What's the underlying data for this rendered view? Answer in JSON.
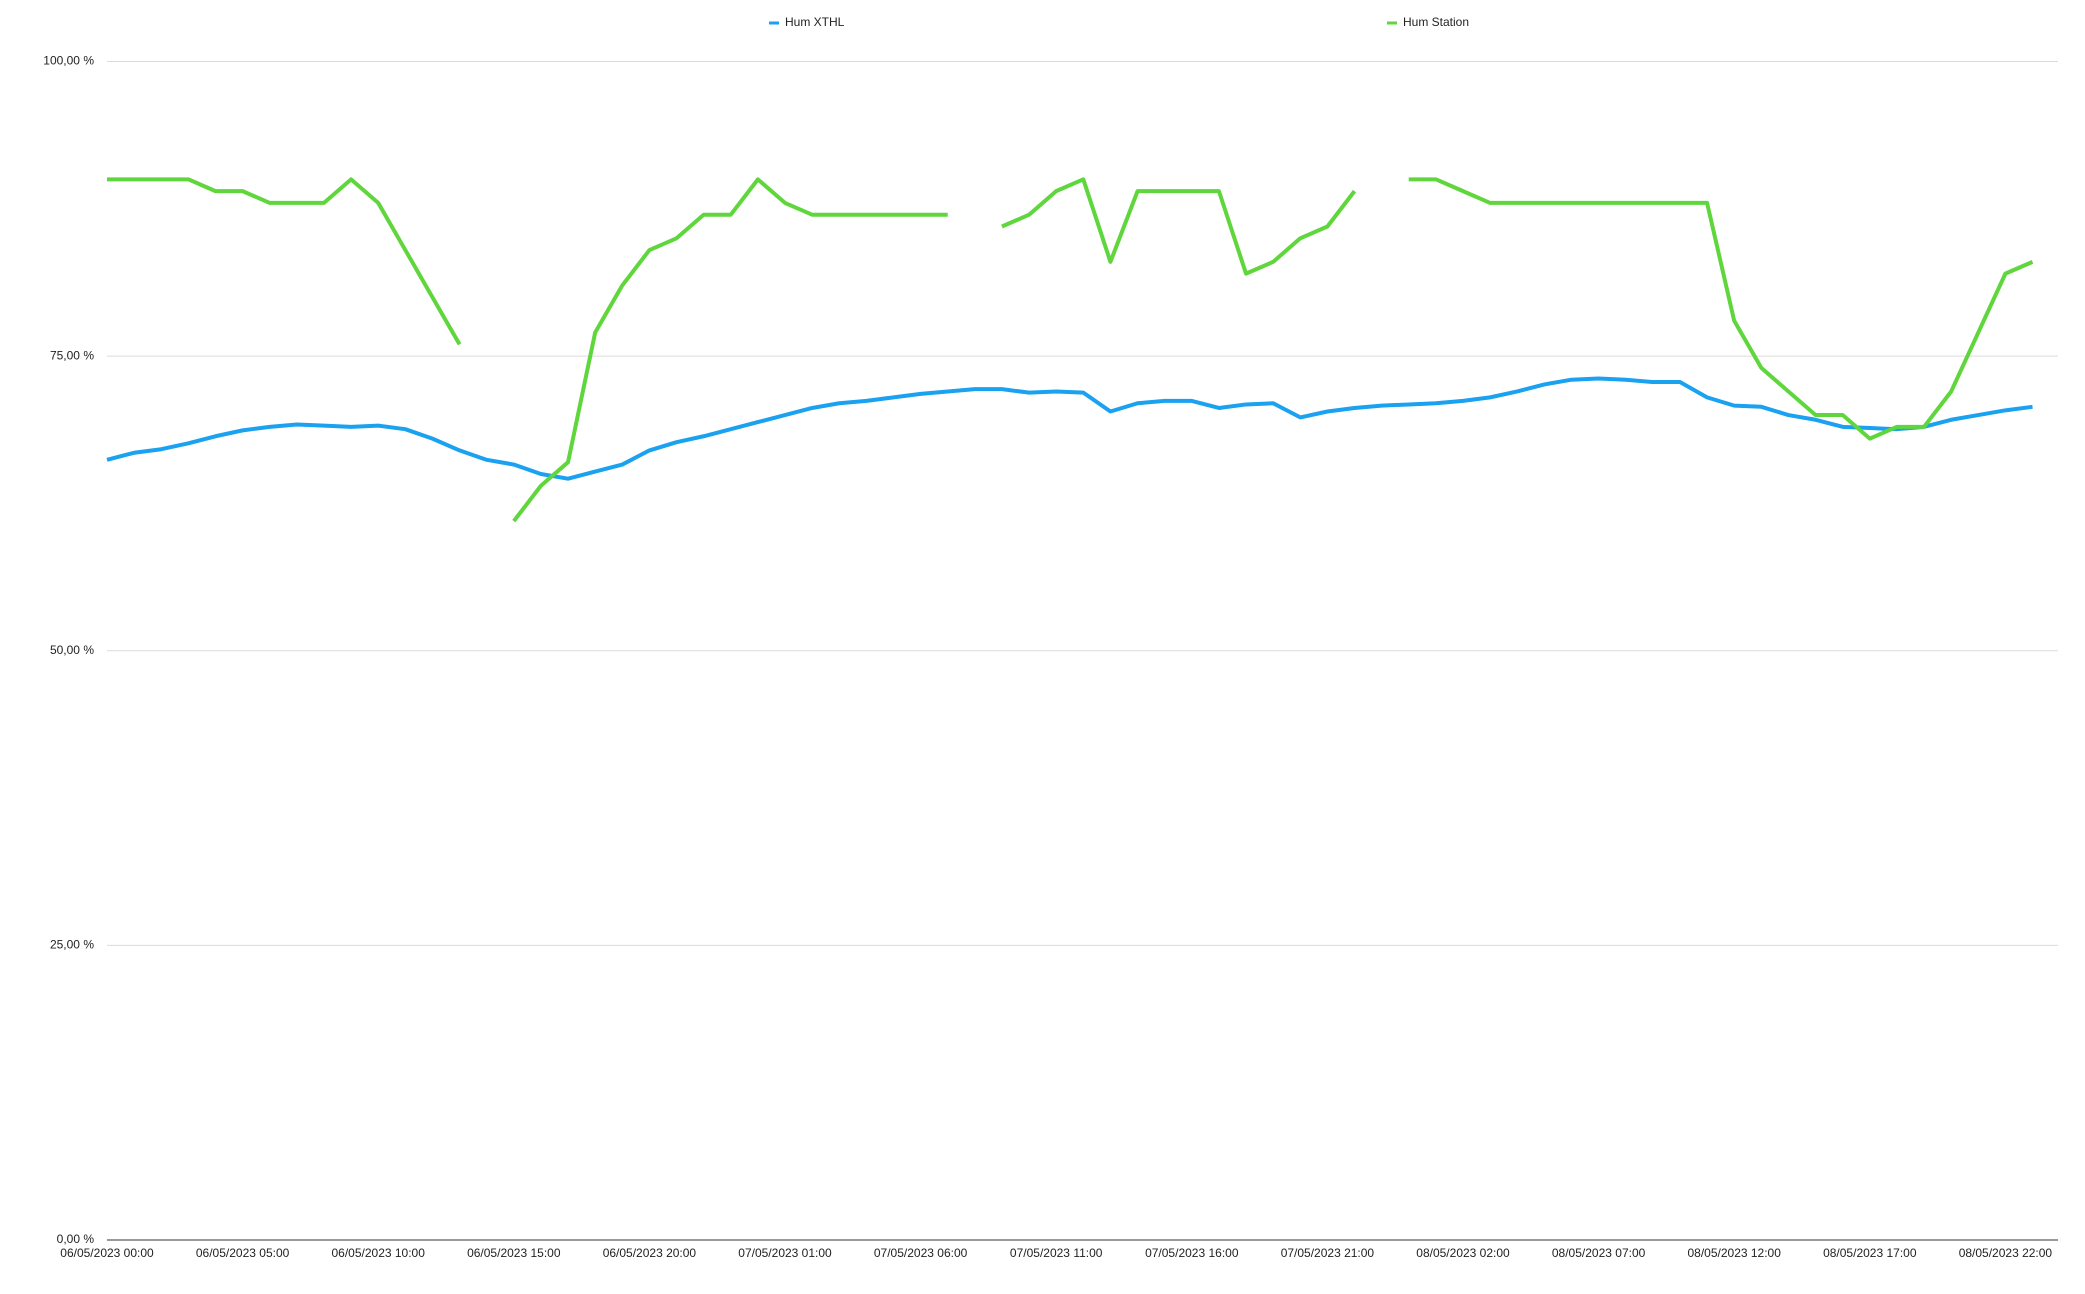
{
  "chart_data": {
    "type": "line",
    "categories": [
      "06/05/2023 00:00",
      null,
      null,
      null,
      null,
      "06/05/2023 05:00",
      null,
      null,
      null,
      null,
      "06/05/2023 10:00",
      null,
      null,
      null,
      null,
      "06/05/2023 15:00",
      null,
      null,
      null,
      null,
      "06/05/2023 20:00",
      null,
      null,
      null,
      null,
      "07/05/2023 01:00",
      null,
      null,
      null,
      null,
      "07/05/2023 06:00",
      null,
      null,
      null,
      null,
      "07/05/2023 11:00",
      null,
      null,
      null,
      null,
      "07/05/2023 16:00",
      null,
      null,
      null,
      null,
      "07/05/2023 21:00",
      null,
      null,
      null,
      null,
      "08/05/2023 02:00",
      null,
      null,
      null,
      null,
      "08/05/2023 07:00",
      null,
      null,
      null,
      null,
      "08/05/2023 12:00",
      null,
      null,
      null,
      null,
      "08/05/2023 17:00",
      null,
      null,
      null,
      null,
      "08/05/2023 22:00",
      null
    ],
    "series": [
      {
        "name": "Hum XTHL",
        "color": "#1aa1f0",
        "values": [
          66.2,
          66.8,
          67.1,
          67.6,
          68.2,
          68.7,
          69.0,
          69.2,
          69.1,
          69.0,
          69.1,
          68.8,
          68.0,
          67.0,
          66.2,
          65.8,
          65.0,
          64.6,
          65.2,
          65.8,
          67.0,
          67.7,
          68.2,
          68.8,
          69.4,
          70.0,
          70.6,
          71.0,
          71.2,
          71.5,
          71.8,
          72.0,
          72.2,
          72.2,
          71.9,
          72.0,
          71.9,
          70.3,
          71.0,
          71.2,
          71.2,
          70.6,
          70.9,
          71.0,
          69.8,
          70.3,
          70.6,
          70.8,
          70.9,
          71.0,
          71.2,
          71.5,
          72.0,
          72.6,
          73.0,
          73.1,
          73.0,
          72.8,
          72.8,
          71.5,
          70.8,
          70.7,
          70.0,
          69.6,
          69.0,
          68.9,
          68.8,
          69.0,
          69.6,
          70.0,
          70.4,
          70.7
        ]
      },
      {
        "name": "Hum Station",
        "color": "#5fd63c",
        "values": [
          90,
          90,
          90,
          90,
          89,
          89,
          88,
          88,
          88,
          90,
          88,
          84,
          80,
          76,
          null,
          61,
          64,
          66,
          77,
          81,
          84,
          85,
          87,
          87,
          90,
          88,
          87,
          87,
          87,
          87,
          87,
          87,
          null,
          86,
          87,
          89,
          90,
          83,
          89,
          89,
          89,
          89,
          82,
          83,
          85,
          86,
          89,
          null,
          90,
          90,
          89,
          88,
          88,
          88,
          88,
          88,
          88,
          88,
          88,
          88,
          78,
          74,
          72,
          70,
          70,
          68,
          69,
          69,
          72,
          77,
          82,
          83
        ]
      }
    ],
    "ylim": [
      0,
      100
    ],
    "yticks": [
      {
        "value": 0,
        "label": "0,00 %"
      },
      {
        "value": 25,
        "label": "25,00 %"
      },
      {
        "value": 50,
        "label": "50,00 %"
      },
      {
        "value": 75,
        "label": "75,00 %"
      },
      {
        "value": 100,
        "label": "100,00 %"
      }
    ],
    "grid": true
  }
}
